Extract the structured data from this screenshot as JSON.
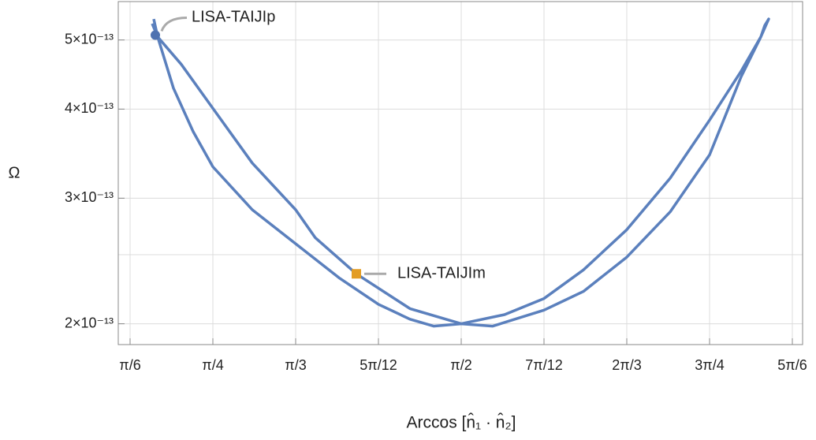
{
  "chart_data": {
    "type": "line",
    "x_label": "Arccos [n̂₁ · n̂₂]",
    "y_label": "Ω",
    "log_y": true,
    "grid": true,
    "xlim": [
      0.4862,
      2.6504
    ],
    "ylim": [
      1.87e-13,
      5.66e-13
    ],
    "xticks": [
      {
        "value": 0.5236,
        "label": "π/6"
      },
      {
        "value": 0.7854,
        "label": "π/4"
      },
      {
        "value": 1.0472,
        "label": "π/3"
      },
      {
        "value": 1.309,
        "label": "5π/12"
      },
      {
        "value": 1.5708,
        "label": "π/2"
      },
      {
        "value": 1.8326,
        "label": "7π/12"
      },
      {
        "value": 2.0944,
        "label": "2π/3"
      },
      {
        "value": 2.3562,
        "label": "3π/4"
      },
      {
        "value": 2.618,
        "label": "5π/6"
      }
    ],
    "yticks": [
      {
        "value": 2e-13,
        "label": "2×10⁻¹³"
      },
      {
        "value": 3e-13,
        "label": "3×10⁻¹³"
      },
      {
        "value": 4e-13,
        "label": "4×10⁻¹³"
      },
      {
        "value": 5e-13,
        "label": "5×10⁻¹³"
      }
    ],
    "y_minor_grid": [
      2.5e-13
    ],
    "series": [
      {
        "color": "#5b80bd",
        "x": [
          0.5984,
          0.6109,
          0.6607,
          0.7231,
          0.7854,
          0.9101,
          1.0472,
          1.1843,
          1.309,
          1.4087,
          1.4835,
          1.5708,
          1.7079,
          1.8326,
          1.9573,
          2.0944,
          2.2315,
          2.3562,
          2.456,
          2.5183,
          2.5433,
          2.5308,
          2.5183,
          2.456,
          2.3562,
          2.2315,
          2.0944,
          1.9573,
          1.8326,
          1.6705,
          1.5708,
          1.4087,
          1.2392,
          1.1095,
          1.0472,
          0.9101,
          0.7854,
          0.6856,
          0.6109,
          0.5934
        ],
        "values": [
          5.35e-13,
          5.05e-13,
          4.28e-13,
          3.72e-13,
          3.32e-13,
          2.89e-13,
          2.59e-13,
          2.32e-13,
          2.13e-13,
          2.03e-13,
          1.985e-13,
          2e-13,
          2.06e-13,
          2.17e-13,
          2.38e-13,
          2.71e-13,
          3.2e-13,
          3.86e-13,
          4.52e-13,
          5.05e-13,
          5.35e-13,
          5.24e-13,
          5.05e-13,
          4.44e-13,
          3.45e-13,
          2.87e-13,
          2.48e-13,
          2.22e-13,
          2.09e-13,
          1.985e-13,
          2e-13,
          2.1e-13,
          2.35e-13,
          2.64e-13,
          2.89e-13,
          3.36e-13,
          4.01e-13,
          4.62e-13,
          5.05e-13,
          5.27e-13
        ]
      }
    ],
    "annotations": [
      {
        "text": "LISA-TAIJIp",
        "x": 0.6034,
        "y": 5.08e-13,
        "marker": "circle",
        "color": "#4f72b0"
      },
      {
        "text": "LISA-TAIJIm",
        "x": 1.2392,
        "y": 2.35e-13,
        "marker": "square",
        "color": "#e39d24"
      }
    ]
  }
}
